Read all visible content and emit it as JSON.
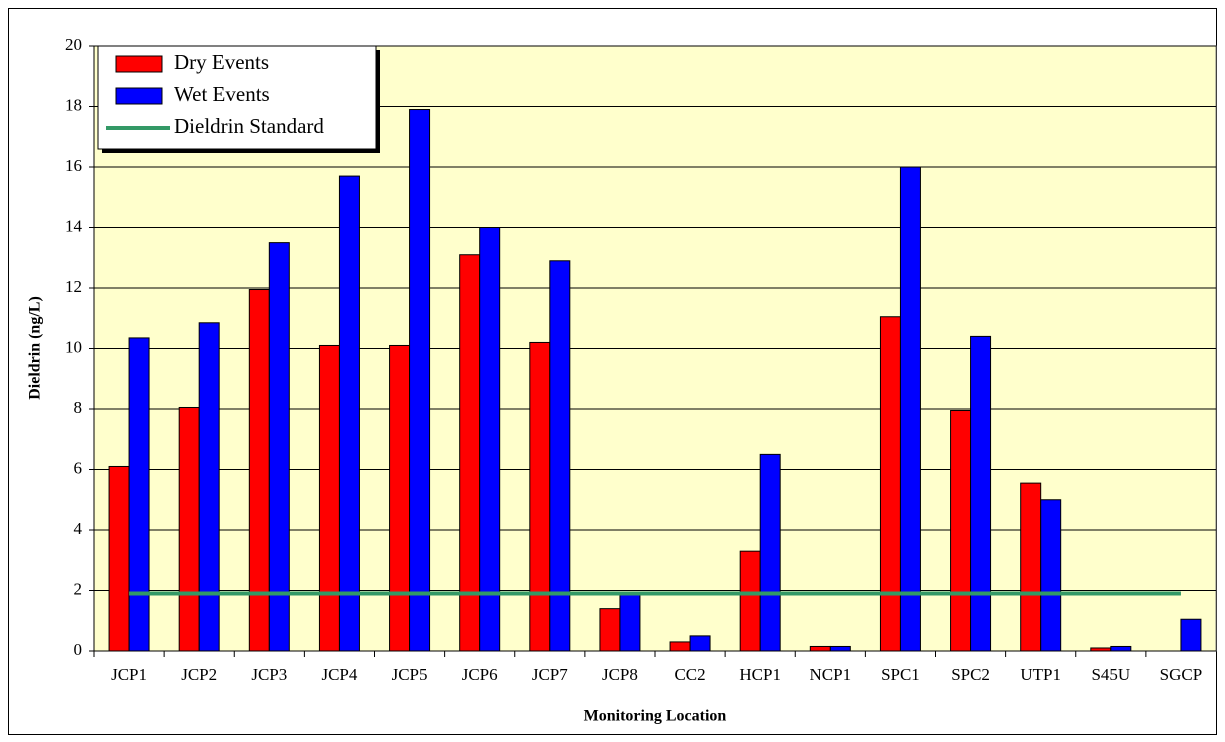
{
  "chart_data": {
    "type": "bar",
    "x_label": "Monitoring Location",
    "y_label": "Dieldrin (ng/L)",
    "categories": [
      "JCP1",
      "JCP2",
      "JCP3",
      "JCP4",
      "JCP5",
      "JCP6",
      "JCP7",
      "JCP8",
      "CC2",
      "HCP1",
      "NCP1",
      "SPC1",
      "SPC2",
      "UTP1",
      "S45U",
      "SGCP"
    ],
    "series": [
      {
        "name": "Dry Events",
        "color": "#ff0000",
        "values": [
          6.1,
          8.05,
          11.95,
          10.1,
          10.1,
          13.1,
          10.2,
          1.4,
          0.3,
          3.3,
          0.15,
          11.05,
          7.95,
          5.55,
          0.1,
          0
        ]
      },
      {
        "name": "Wet Events",
        "color": "#0000ff",
        "values": [
          10.35,
          10.85,
          13.5,
          15.7,
          17.9,
          14.0,
          12.9,
          1.9,
          0.5,
          6.5,
          0.15,
          16.0,
          10.4,
          5.0,
          0.15,
          1.05
        ]
      },
      {
        "name": "Dieldrin Standard",
        "color": "#339966",
        "type": "line",
        "values": [
          1.9,
          1.9,
          1.9,
          1.9,
          1.9,
          1.9,
          1.9,
          1.9,
          1.9,
          1.9,
          1.9,
          1.9,
          1.9,
          1.9,
          1.9,
          1.9
        ]
      }
    ],
    "ylim": [
      0,
      20
    ],
    "yticks": [
      0,
      2,
      4,
      6,
      8,
      10,
      12,
      14,
      16,
      18,
      20
    ],
    "grid": true,
    "legend": "top-left",
    "background": "#ffffcc"
  }
}
